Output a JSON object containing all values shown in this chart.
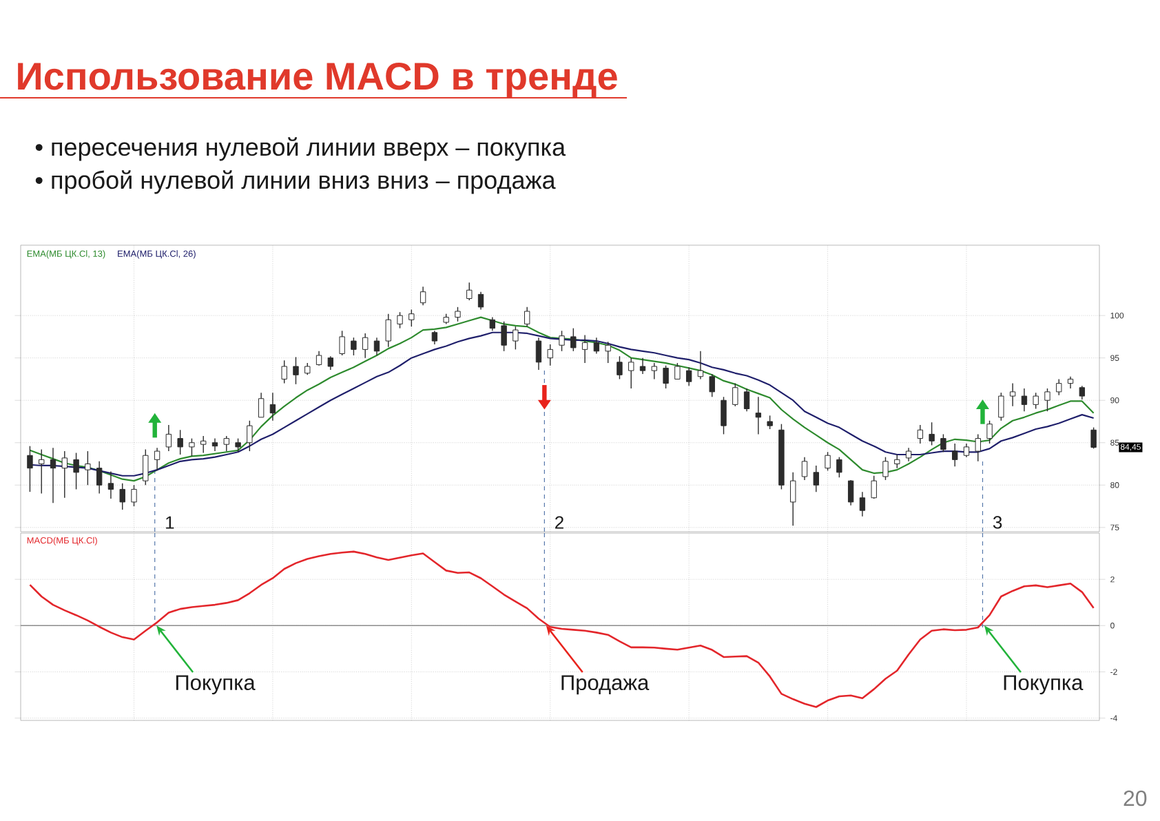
{
  "chart_data": [
    {
      "type": "candlestick",
      "title": "Использование MACD в тренде",
      "categories": [
        null,
        null,
        null,
        null,
        null,
        null,
        null,
        null,
        null,
        null,
        null,
        null,
        null,
        null,
        null,
        null,
        null,
        null,
        null,
        null,
        null,
        null,
        null,
        null,
        null,
        null,
        null,
        null,
        null,
        null,
        null,
        null,
        null,
        null,
        null,
        null,
        null,
        null,
        null,
        null,
        null,
        null,
        null,
        null,
        null,
        null,
        null,
        null,
        null,
        null,
        null,
        null,
        null,
        null,
        null,
        null,
        null,
        null,
        null,
        null,
        null,
        null,
        null,
        null,
        null,
        null,
        null,
        null,
        null,
        null,
        null,
        null,
        null,
        null,
        null,
        null,
        null,
        null,
        null,
        null,
        null,
        null,
        null,
        null,
        null,
        null,
        null,
        null,
        null,
        null,
        null,
        null,
        null
      ],
      "ohlc": [
        [
          83.5,
          84.6,
          79.2,
          82.0
        ],
        [
          82.5,
          84.2,
          79.0,
          83.0
        ],
        [
          83.0,
          84.4,
          77.9,
          82.0
        ],
        [
          82.0,
          84.0,
          78.5,
          83.2
        ],
        [
          83.0,
          83.8,
          79.5,
          81.5
        ],
        [
          81.8,
          84.0,
          80.0,
          82.5
        ],
        [
          82.0,
          82.8,
          79.0,
          80.0
        ],
        [
          80.2,
          81.6,
          78.4,
          79.5
        ],
        [
          79.5,
          80.2,
          77.1,
          78.0
        ],
        [
          78.0,
          80.0,
          77.5,
          79.5
        ],
        [
          80.5,
          84.2,
          80.0,
          83.5
        ],
        [
          83.0,
          84.4,
          81.7,
          84.0
        ],
        [
          84.5,
          87.1,
          84.0,
          86.0
        ],
        [
          85.5,
          86.5,
          83.6,
          84.5
        ],
        [
          84.5,
          85.5,
          83.4,
          85.0
        ],
        [
          84.8,
          85.8,
          83.8,
          85.2
        ],
        [
          85.0,
          85.5,
          84.0,
          84.6
        ],
        [
          84.8,
          85.8,
          84.0,
          85.5
        ],
        [
          85.0,
          85.5,
          83.9,
          84.5
        ],
        [
          85.0,
          87.6,
          84.0,
          87.0
        ],
        [
          88.0,
          90.9,
          88.0,
          90.2
        ],
        [
          89.5,
          90.9,
          87.6,
          88.5
        ],
        [
          92.5,
          94.7,
          92.0,
          94.0
        ],
        [
          94.0,
          95.1,
          91.9,
          93.0
        ],
        [
          93.2,
          94.4,
          93.0,
          94.0
        ],
        [
          94.2,
          95.8,
          94.1,
          95.3
        ],
        [
          95.0,
          95.2,
          93.6,
          94.0
        ],
        [
          95.5,
          98.2,
          95.3,
          97.5
        ],
        [
          97.0,
          97.4,
          95.3,
          96.0
        ],
        [
          96.0,
          97.9,
          95.0,
          97.4
        ],
        [
          97.0,
          97.4,
          95.3,
          95.8
        ],
        [
          97.0,
          100.2,
          96.3,
          99.5
        ],
        [
          99.0,
          100.4,
          98.5,
          100.0
        ],
        [
          99.5,
          100.7,
          98.7,
          100.2
        ],
        [
          101.5,
          103.4,
          101.2,
          102.8
        ],
        [
          98.0,
          98.2,
          96.6,
          97.0
        ],
        [
          99.2,
          100.2,
          99.0,
          99.8
        ],
        [
          99.8,
          101.0,
          99.3,
          100.5
        ],
        [
          102.0,
          103.9,
          101.8,
          103.0
        ],
        [
          102.5,
          102.8,
          100.7,
          101.0
        ],
        [
          99.5,
          99.8,
          98.2,
          98.5
        ],
        [
          98.8,
          99.3,
          95.8,
          96.5
        ],
        [
          97.0,
          98.7,
          96.0,
          98.3
        ],
        [
          99.0,
          101.0,
          98.7,
          100.5
        ],
        [
          97.0,
          97.4,
          93.6,
          94.5
        ],
        [
          95.0,
          96.6,
          94.1,
          96.0
        ],
        [
          96.5,
          98.2,
          95.8,
          97.6
        ],
        [
          97.5,
          98.5,
          95.8,
          96.2
        ],
        [
          96.0,
          97.7,
          94.4,
          96.8
        ],
        [
          96.8,
          97.4,
          95.5,
          95.8
        ],
        [
          95.8,
          96.9,
          94.4,
          96.5
        ],
        [
          94.5,
          95.2,
          92.5,
          93.0
        ],
        [
          93.5,
          95.0,
          91.4,
          94.5
        ],
        [
          94.0,
          95.0,
          93.1,
          93.5
        ],
        [
          93.5,
          94.4,
          92.5,
          94.0
        ],
        [
          93.8,
          94.1,
          91.4,
          92.0
        ],
        [
          92.5,
          94.4,
          92.5,
          94.0
        ],
        [
          93.5,
          93.9,
          91.7,
          92.2
        ],
        [
          92.8,
          95.8,
          92.5,
          93.5
        ],
        [
          92.8,
          93.1,
          90.4,
          91.0
        ],
        [
          90.0,
          90.4,
          86.0,
          87.0
        ],
        [
          89.5,
          92.0,
          89.3,
          91.5
        ],
        [
          91.0,
          91.4,
          88.7,
          89.0
        ],
        [
          88.5,
          90.4,
          86.0,
          88.0
        ],
        [
          87.5,
          88.2,
          86.6,
          87.0
        ],
        [
          86.5,
          87.2,
          79.5,
          80.0
        ],
        [
          78.0,
          81.5,
          75.2,
          80.5
        ],
        [
          81.0,
          83.3,
          80.6,
          82.8
        ],
        [
          81.5,
          82.3,
          79.2,
          80.0
        ],
        [
          82.0,
          83.9,
          81.7,
          83.5
        ],
        [
          83.0,
          83.3,
          80.9,
          81.5
        ],
        [
          80.5,
          80.6,
          77.6,
          78.0
        ],
        [
          78.5,
          79.2,
          76.3,
          77.0
        ],
        [
          78.5,
          81.1,
          78.4,
          80.5
        ],
        [
          81.0,
          83.3,
          80.6,
          82.8
        ],
        [
          82.5,
          83.6,
          82.0,
          83.0
        ],
        [
          83.2,
          84.4,
          82.8,
          84.0
        ],
        [
          85.5,
          87.1,
          84.9,
          86.5
        ],
        [
          86.0,
          87.4,
          84.7,
          85.2
        ],
        [
          85.5,
          86.0,
          83.9,
          84.2
        ],
        [
          84.0,
          84.9,
          82.2,
          83.0
        ],
        [
          83.5,
          84.9,
          83.3,
          84.5
        ],
        [
          84.0,
          86.0,
          82.8,
          85.5
        ],
        [
          85.5,
          87.6,
          84.9,
          87.2
        ],
        [
          88.0,
          90.9,
          87.6,
          90.5
        ],
        [
          90.5,
          92.0,
          89.3,
          91.0
        ],
        [
          90.5,
          91.4,
          88.7,
          89.5
        ],
        [
          89.5,
          90.9,
          89.0,
          90.5
        ],
        [
          90.0,
          91.4,
          88.7,
          91.0
        ],
        [
          91.0,
          92.5,
          90.6,
          92.0
        ],
        [
          92.0,
          92.8,
          91.4,
          92.5
        ],
        [
          91.5,
          91.7,
          90.1,
          90.5
        ],
        [
          86.5,
          86.8,
          84.3,
          84.45
        ]
      ],
      "color": "#2b2b2b",
      "series": [
        {
          "name": "EMA(МБ ЦК.Cl, 13)",
          "type": "line",
          "color": "#2e8b2e",
          "values": [
            84.1,
            83.6,
            83.1,
            82.6,
            82.3,
            82.1,
            81.7,
            81.2,
            80.7,
            80.5,
            81.0,
            81.8,
            82.6,
            83.1,
            83.4,
            83.5,
            83.7,
            83.9,
            84.1,
            85.3,
            86.9,
            88.2,
            89.3,
            90.3,
            91.2,
            91.9,
            92.7,
            93.3,
            93.9,
            94.6,
            95.3,
            96.1,
            96.7,
            97.4,
            98.3,
            98.4,
            98.6,
            99.0,
            99.4,
            99.8,
            99.4,
            99.0,
            98.8,
            98.7,
            98.0,
            97.4,
            97.3,
            97.2,
            97.0,
            96.8,
            96.5,
            95.9,
            95.0,
            94.8,
            94.6,
            94.4,
            94.1,
            93.8,
            93.5,
            93.0,
            92.3,
            91.9,
            91.3,
            90.8,
            90.3,
            88.9,
            87.8,
            86.8,
            85.9,
            85.0,
            84.2,
            83.0,
            81.8,
            81.4,
            81.5,
            81.8,
            82.5,
            83.3,
            84.2,
            85.0,
            85.4,
            85.3,
            85.1,
            85.3,
            86.7,
            87.6,
            88.0,
            88.5,
            88.9,
            89.4,
            89.9,
            89.9,
            88.5
          ]
        },
        {
          "name": "EMA(МБ ЦК.Cl, 26)",
          "type": "line",
          "color": "#1f1f6b",
          "values": [
            82.4,
            82.3,
            82.3,
            82.2,
            82.1,
            82.0,
            81.7,
            81.4,
            81.1,
            81.1,
            81.4,
            81.8,
            82.3,
            82.8,
            83.0,
            83.1,
            83.3,
            83.6,
            83.9,
            84.6,
            85.4,
            86.0,
            86.8,
            87.6,
            88.4,
            89.2,
            90.0,
            90.7,
            91.4,
            92.1,
            92.8,
            93.3,
            94.1,
            95.0,
            95.5,
            96.0,
            96.4,
            96.9,
            97.3,
            97.6,
            98.0,
            98.0,
            98.0,
            97.9,
            97.6,
            97.3,
            97.2,
            97.1,
            97.1,
            97.0,
            96.7,
            96.3,
            96.0,
            95.8,
            95.6,
            95.3,
            95.0,
            94.8,
            94.4,
            93.9,
            93.6,
            93.2,
            92.9,
            92.4,
            91.8,
            90.9,
            90.0,
            88.7,
            88.0,
            87.3,
            86.8,
            86.0,
            85.2,
            84.6,
            83.9,
            83.6,
            83.6,
            83.6,
            83.8,
            84.0,
            84.0,
            83.9,
            83.9,
            84.3,
            85.2,
            85.6,
            86.1,
            86.6,
            86.9,
            87.3,
            87.8,
            88.3,
            87.9
          ]
        }
      ],
      "ylim": [
        74.5,
        108.3
      ],
      "yticks": [
        75,
        80,
        85,
        90,
        95,
        100
      ],
      "grid": true,
      "legend": "top left",
      "tick_labels": "y",
      "annotations": [
        "• пересечения нулевой линии вверх – покупка",
        "• пробой нулевой линии вниз вниз – продажа",
        "1",
        "2",
        "3",
        "84,45"
      ]
    },
    {
      "type": "line",
      "categories": [
        null,
        null,
        null,
        null,
        null,
        null,
        null,
        null,
        null,
        null,
        null,
        null,
        null,
        null,
        null,
        null,
        null,
        null,
        null,
        null,
        null,
        null,
        null,
        null,
        null,
        null,
        null,
        null,
        null,
        null,
        null,
        null,
        null,
        null,
        null,
        null,
        null,
        null,
        null,
        null,
        null,
        null,
        null,
        null,
        null,
        null,
        null,
        null,
        null,
        null,
        null,
        null,
        null,
        null,
        null,
        null,
        null,
        null,
        null,
        null,
        null,
        null,
        null,
        null,
        null,
        null,
        null,
        null,
        null,
        null,
        null,
        null,
        null,
        null,
        null,
        null,
        null,
        null,
        null,
        null,
        null,
        null,
        null,
        null,
        null,
        null,
        null,
        null,
        null,
        null,
        null,
        null,
        null
      ],
      "series": [
        {
          "name": "MACD(МБ ЦК.Cl)",
          "color": "#e3262b",
          "values": [
            1.76,
            1.26,
            0.9,
            0.66,
            0.45,
            0.22,
            -0.05,
            -0.3,
            -0.5,
            -0.6,
            -0.22,
            0.14,
            0.56,
            0.72,
            0.8,
            0.85,
            0.9,
            0.98,
            1.1,
            1.4,
            1.76,
            2.05,
            2.45,
            2.7,
            2.88,
            3.0,
            3.1,
            3.16,
            3.2,
            3.1,
            2.95,
            2.84,
            2.94,
            3.04,
            3.12,
            2.75,
            2.38,
            2.28,
            2.3,
            2.05,
            1.7,
            1.34,
            1.04,
            0.75,
            0.3,
            -0.06,
            -0.14,
            -0.18,
            -0.22,
            -0.3,
            -0.4,
            -0.68,
            -0.94,
            -0.94,
            -0.95,
            -1.0,
            -1.04,
            -0.95,
            -0.86,
            -1.05,
            -1.36,
            -1.34,
            -1.32,
            -1.6,
            -2.2,
            -2.95,
            -3.18,
            -3.38,
            -3.52,
            -3.24,
            -3.06,
            -3.02,
            -3.14,
            -2.75,
            -2.3,
            -1.95,
            -1.25,
            -0.6,
            -0.22,
            -0.16,
            -0.2,
            -0.18,
            -0.08,
            0.45,
            1.26,
            1.5,
            1.7,
            1.74,
            1.66,
            1.74,
            1.82,
            1.45,
            0.76
          ]
        }
      ],
      "ylim": [
        -4.1,
        4.0
      ],
      "yticks": [
        -4,
        -2,
        0,
        2
      ],
      "grid": true,
      "legend": "top left",
      "tick_labels": "y",
      "ref_lines": [
        {
          "axis": "y",
          "value": 0,
          "color": "#8c8c8c"
        }
      ],
      "annotations": [
        "Покупка",
        "Продажа",
        "Покупка",
        "20"
      ]
    }
  ]
}
